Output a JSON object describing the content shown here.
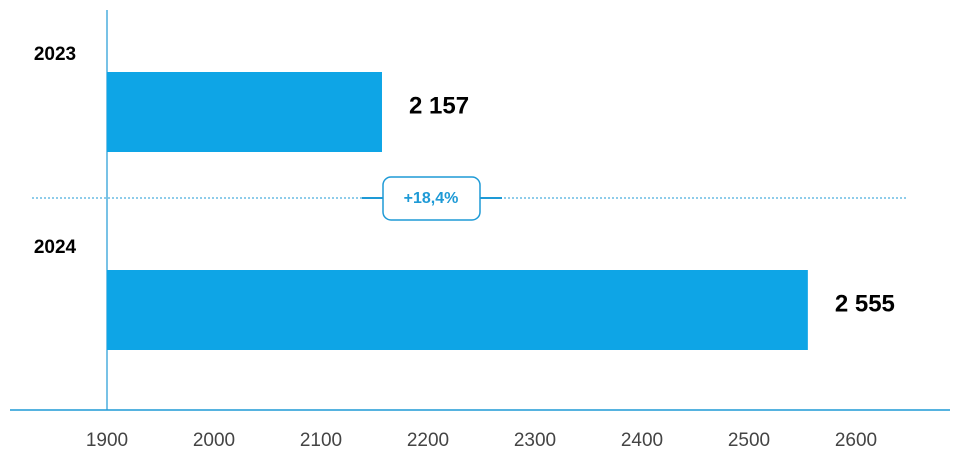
{
  "chart_data": {
    "type": "bar",
    "orientation": "horizontal",
    "categories": [
      "2023",
      "2024"
    ],
    "values": [
      2157,
      2555
    ],
    "value_labels": [
      "2 157",
      "2 555"
    ],
    "color": "#0ea5e6",
    "annotation": "+18,4%",
    "xlim": [
      1900,
      2600
    ],
    "xticks": [
      1900,
      2000,
      2100,
      2200,
      2300,
      2400,
      2500,
      2600
    ]
  }
}
